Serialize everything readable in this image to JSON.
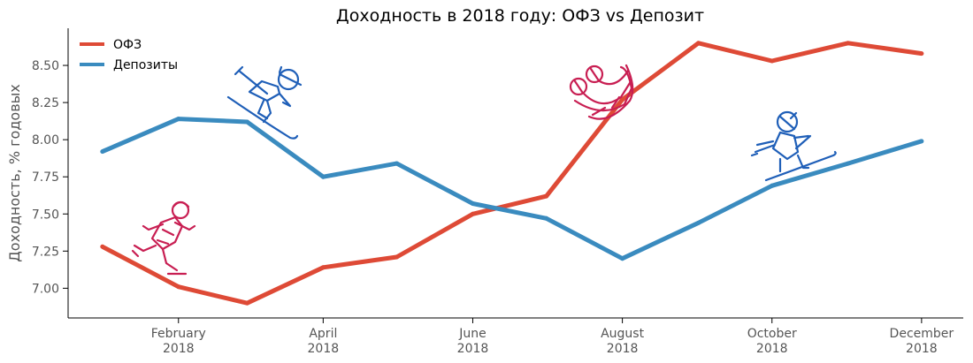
{
  "chart_data": {
    "type": "line",
    "title": "Доходность в 2018 году: ОФЗ vs Депозит",
    "ylabel": "Доходность, % годовых",
    "xlabel": "",
    "x": [
      "2018-01",
      "2018-02",
      "2018-03",
      "2018-04",
      "2018-05",
      "2018-06",
      "2018-07",
      "2018-08",
      "2018-09",
      "2018-10",
      "2018-11",
      "2018-12"
    ],
    "x_ticks": [
      {
        "month": "2018-02",
        "label": "February",
        "year": "2018"
      },
      {
        "month": "2018-04",
        "label": "April",
        "year": "2018"
      },
      {
        "month": "2018-06",
        "label": "June",
        "year": "2018"
      },
      {
        "month": "2018-08",
        "label": "August",
        "year": "2018"
      },
      {
        "month": "2018-10",
        "label": "October",
        "year": "2018"
      },
      {
        "month": "2018-12",
        "label": "December",
        "year": "2018"
      }
    ],
    "y_ticks": [
      7.0,
      7.25,
      7.5,
      7.75,
      8.0,
      8.25,
      8.5
    ],
    "y_tick_labels": [
      "7.00",
      "7.25",
      "7.50",
      "7.75",
      "8.00",
      "8.25",
      "8.50"
    ],
    "ylim": [
      6.8,
      8.75
    ],
    "xlim": [
      "2017-12-18",
      "2018-12-18"
    ],
    "grid": false,
    "legend_position": "top-left",
    "series": [
      {
        "name": "ОФЗ",
        "color": "#de4a36",
        "values": [
          7.28,
          7.01,
          6.9,
          7.14,
          7.21,
          7.5,
          7.62,
          8.27,
          8.65,
          8.53,
          8.65,
          8.58
        ]
      },
      {
        "name": "Депозиты",
        "color": "#3a8bbf",
        "values": [
          7.92,
          8.14,
          8.12,
          7.75,
          7.84,
          7.57,
          7.47,
          7.2,
          7.44,
          7.69,
          7.84,
          7.99
        ]
      }
    ]
  },
  "decorations": {
    "icons": [
      {
        "name": "skater-icon",
        "color": "#c81e52"
      },
      {
        "name": "skier-icon",
        "color": "#1f5fb8"
      },
      {
        "name": "sledders-icon",
        "color": "#c81e52"
      },
      {
        "name": "cross-country-skier-icon",
        "color": "#1f5fb8"
      }
    ]
  }
}
